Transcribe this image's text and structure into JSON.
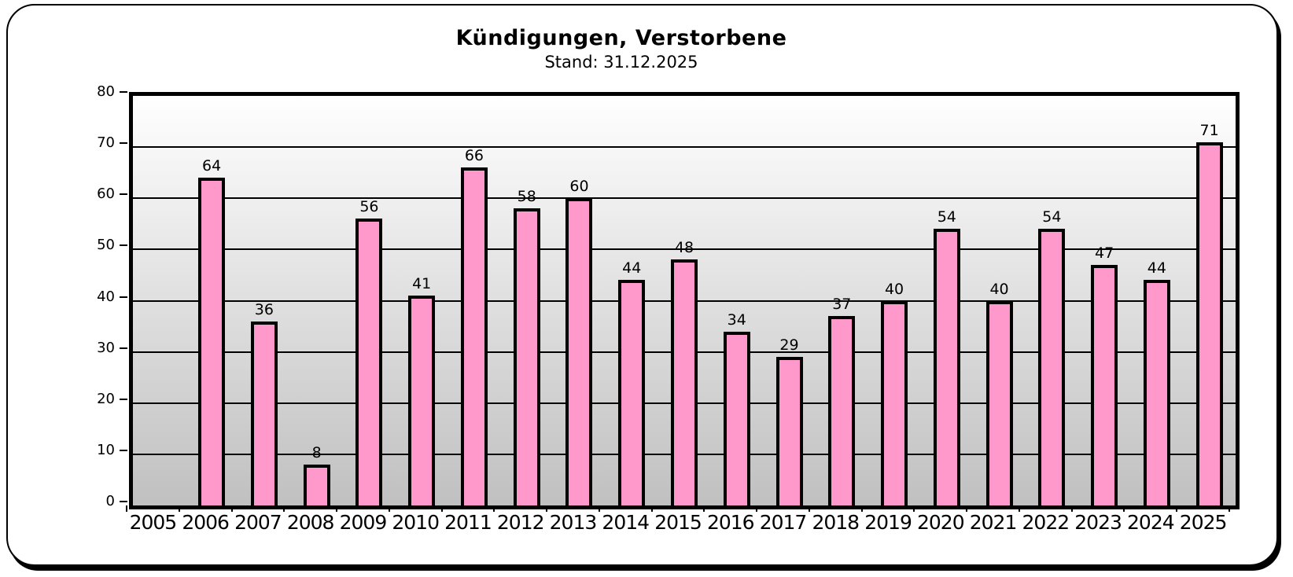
{
  "header": {
    "title": "Kündigungen, Verstorbene",
    "subtitle": "Stand: 31.12.2025"
  },
  "chart_data": {
    "type": "bar",
    "title": "Kündigungen, Verstorbene",
    "subtitle": "Stand: 31.12.2025",
    "categories": [
      "2005",
      "2006",
      "2007",
      "2008",
      "2009",
      "2010",
      "2011",
      "2012",
      "2013",
      "2014",
      "2015",
      "2016",
      "2017",
      "2018",
      "2019",
      "2020",
      "2021",
      "2022",
      "2023",
      "2024",
      "2025"
    ],
    "values": [
      null,
      64,
      36,
      8,
      56,
      41,
      66,
      58,
      60,
      44,
      48,
      34,
      29,
      37,
      40,
      54,
      40,
      54,
      47,
      44,
      71
    ],
    "xlabel": "",
    "ylabel": "",
    "ylim": [
      0,
      80
    ],
    "ytick_step": 10,
    "yticks": [
      0,
      10,
      20,
      30,
      40,
      50,
      60,
      70,
      80
    ],
    "grid": "horizontal",
    "legend": "none",
    "data_labels": "above-bars",
    "colors": {
      "bar_fill": "#FF99CC",
      "bar_border": "#000000",
      "plot_bg_top": "#FFFFFF",
      "plot_bg_bottom": "#C0C0C0",
      "frame": "#000000",
      "grid": "#000000",
      "text": "#000000"
    }
  }
}
